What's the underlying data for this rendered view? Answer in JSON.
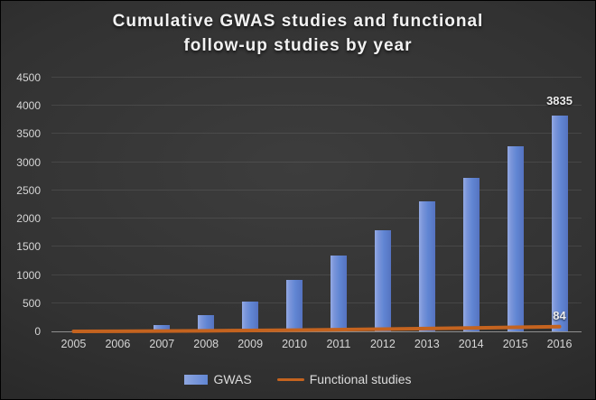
{
  "title": {
    "line1": "Cumulative GWAS studies and functional",
    "line2": "follow-up studies by year"
  },
  "chart_data": {
    "type": "bar",
    "title": "Cumulative GWAS studies and functional follow-up studies by year",
    "categories": [
      "2005",
      "2006",
      "2007",
      "2008",
      "2009",
      "2010",
      "2011",
      "2012",
      "2013",
      "2014",
      "2015",
      "2016"
    ],
    "series": [
      {
        "name": "GWAS",
        "type": "bar",
        "color": "#6186d3",
        "values": [
          2,
          10,
          115,
          290,
          530,
          915,
          1350,
          1800,
          2300,
          2720,
          3280,
          3835
        ]
      },
      {
        "name": "Functional studies",
        "type": "line",
        "color": "#c4631f",
        "values": [
          1,
          3,
          6,
          10,
          16,
          23,
          31,
          40,
          50,
          61,
          72,
          84
        ]
      }
    ],
    "ylim": [
      0,
      4500
    ],
    "yticks": [
      0,
      500,
      1000,
      1500,
      2000,
      2500,
      3000,
      3500,
      4000,
      4500
    ],
    "grid": true,
    "legend_position": "bottom",
    "data_labels": [
      {
        "series": 0,
        "category": 11,
        "text": "3835"
      },
      {
        "series": 1,
        "category": 11,
        "text": "84"
      }
    ]
  },
  "colors": {
    "bar_fill": "#6186d3",
    "line": "#c4631f",
    "axis_text": "#d6d6d6",
    "title_text": "#f2f2f2",
    "gridline": "rgba(255,255,255,0.09)",
    "axis_line": "#8f8f8f"
  }
}
